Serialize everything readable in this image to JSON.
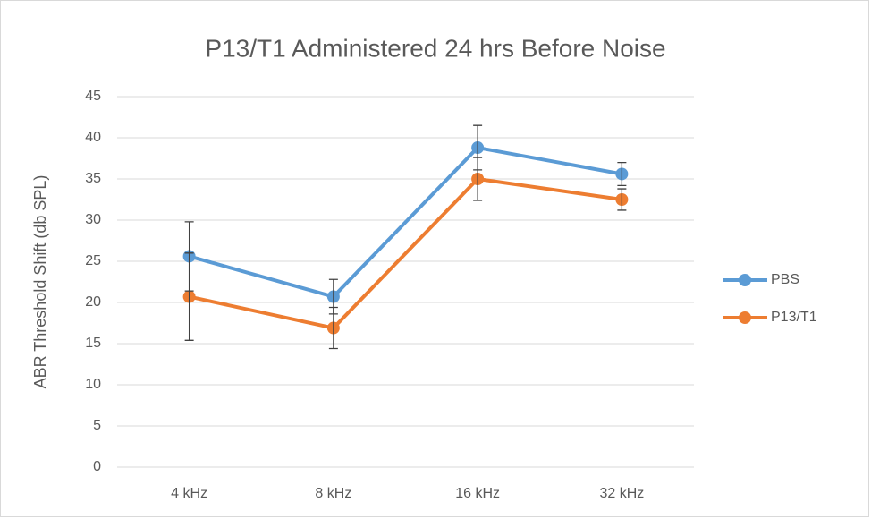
{
  "chart_data": {
    "type": "line",
    "title": "P13/T1 Administered 24 hrs Before Noise",
    "y_label": "ABR Threshold Shift (db SPL)",
    "categories": [
      "4 kHz",
      "8 kHz",
      "16 kHz",
      "32 kHz"
    ],
    "series": [
      {
        "name": "PBS",
        "color": "#5b9bd5",
        "values": [
          25.6,
          20.7,
          38.8,
          35.6
        ],
        "errors": [
          4.2,
          2.1,
          2.7,
          1.4
        ]
      },
      {
        "name": "P13/T1",
        "color": "#ed7d31",
        "values": [
          20.7,
          16.9,
          35.0,
          32.5
        ],
        "errors": [
          5.3,
          2.5,
          2.6,
          1.3
        ]
      }
    ],
    "ylim": [
      0,
      45
    ],
    "yticks": [
      0,
      5,
      10,
      15,
      20,
      25,
      30,
      35,
      40,
      45
    ],
    "grid": true,
    "legend": "right"
  }
}
